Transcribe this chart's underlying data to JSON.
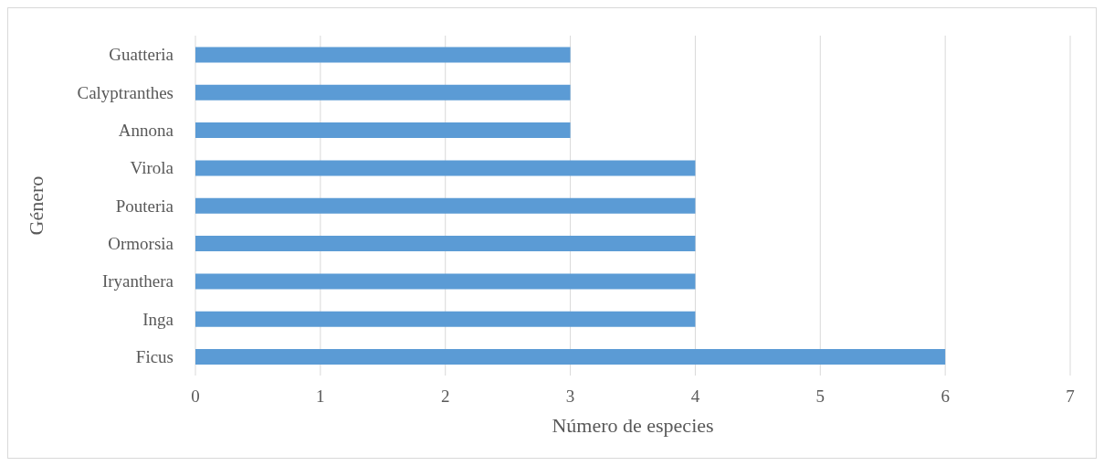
{
  "chart_data": {
    "type": "bar",
    "orientation": "horizontal",
    "xlabel": "Número de especies",
    "ylabel": "Género",
    "categories": [
      "Guatteria",
      "Calyptranthes",
      "Annona",
      "Virola",
      "Pouteria",
      "Ormorsia",
      "Iryanthera",
      "Inga",
      "Ficus"
    ],
    "values": [
      3,
      3,
      3,
      4,
      4,
      4,
      4,
      4,
      6
    ],
    "color": "#5b9bd5",
    "xlim": [
      0,
      7
    ],
    "xticks": [
      0,
      1,
      2,
      3,
      4,
      5,
      6,
      7
    ],
    "grid": "x"
  }
}
